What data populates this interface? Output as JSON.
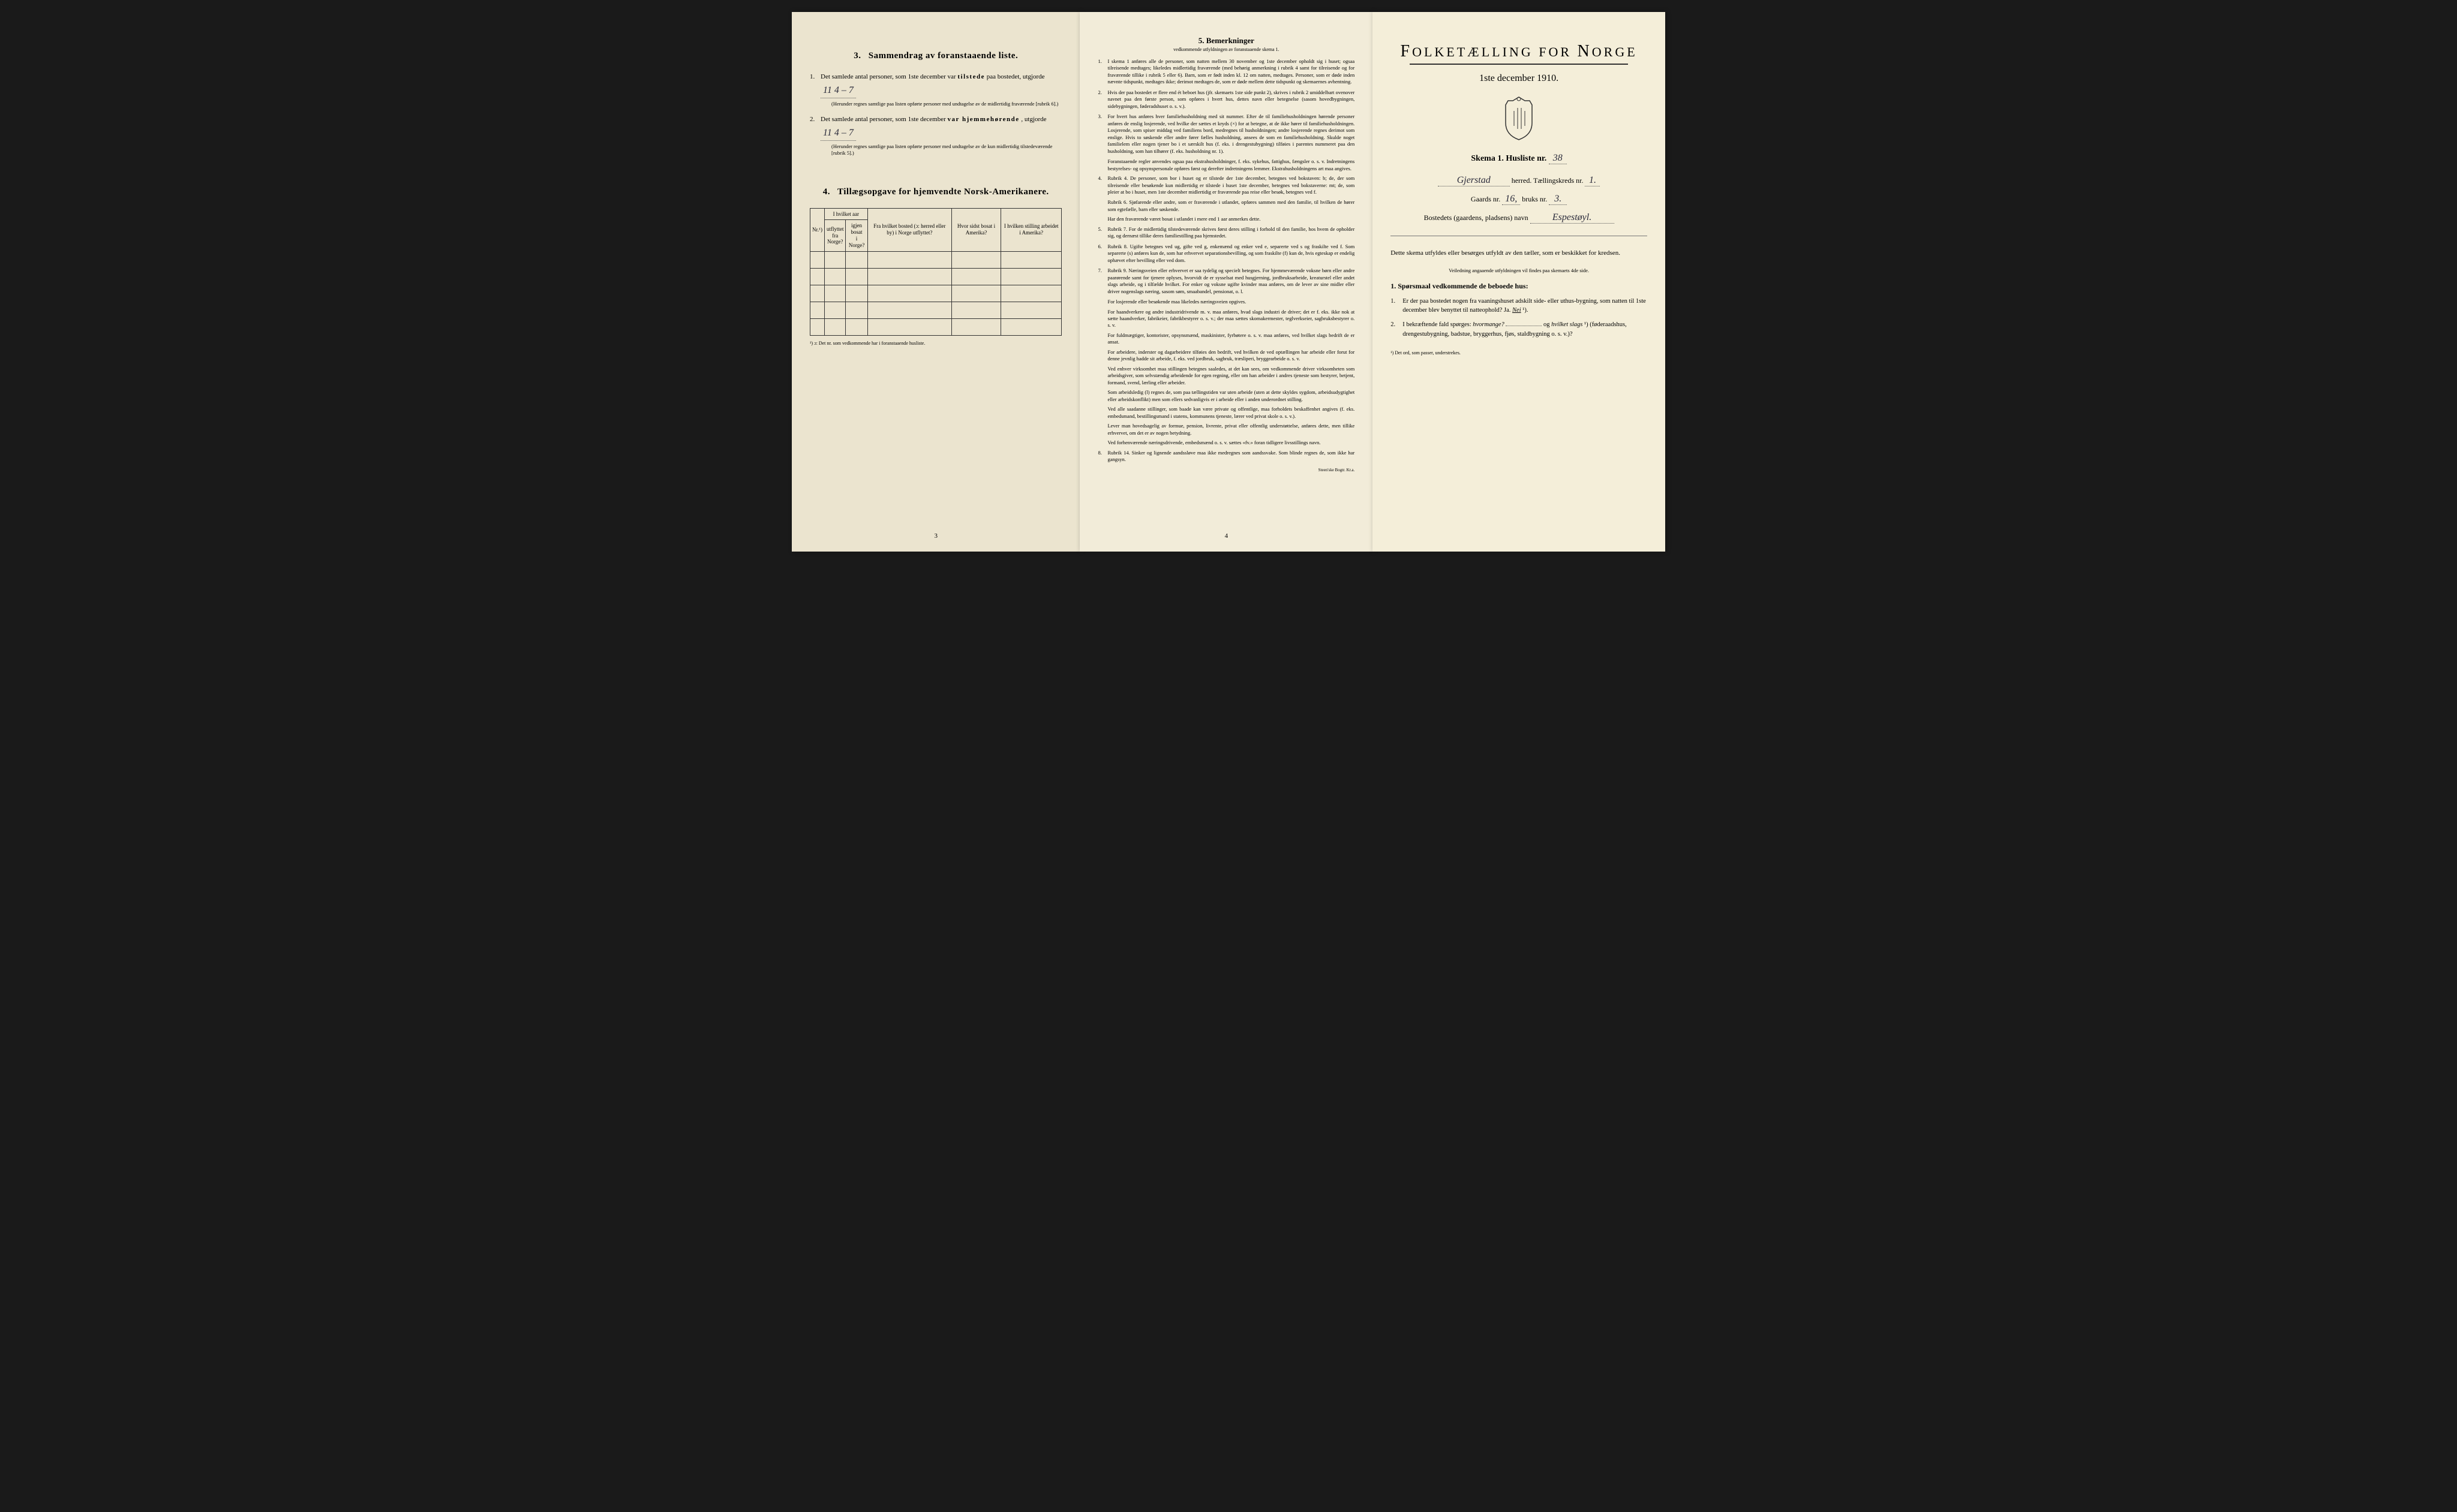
{
  "page1": {
    "section3": {
      "heading": "Sammendrag av foranstaaende liste.",
      "num": "3.",
      "item1_pre": "Det samlede antal personer, som 1ste december var ",
      "item1_bold": "tilstede",
      "item1_post": " paa bostedet, utgjorde",
      "item1_value": "11     4 – 7",
      "item1_note": "(Herunder regnes samtlige paa listen opførte personer med undtagelse av de midlertidig fraværende [rubrik 6].)",
      "item2_pre": "Det samlede antal personer, som 1ste december ",
      "item2_bold": "var hjemmehørende",
      "item2_post": ", utgjorde",
      "item2_value": "11     4 – 7",
      "item2_note": "(Herunder regnes samtlige paa listen opførte personer med undtagelse av de kun midlertidig tilstedeværende [rubrik 5].)"
    },
    "section4": {
      "heading": "Tillægsopgave for hjemvendte Norsk-Amerikanere.",
      "num": "4.",
      "cols": [
        "Nr.¹)",
        "I hvilket aar utflyttet fra Norge?",
        "igjen bosat i Norge?",
        "Fra hvilket bosted (ɔ: herred eller by) i Norge utflyttet?",
        "Hvor sidst bosat i Amerika?",
        "I hvilken stilling arbeidet i Amerika?"
      ],
      "col_group_top": "I hvilket aar",
      "row_count": 5,
      "footnote": "¹) ɔ: Det nr. som vedkommende har i foranstaaende husliste."
    },
    "page_num": "3"
  },
  "page2": {
    "heading": "5.   Bemerkninger",
    "sub": "vedkommende utfyldningen av foranstaaende skema 1.",
    "rules": [
      {
        "n": "1.",
        "t": "I skema 1 anføres alle de personer, som natten mellem 30 november og 1ste december opholdt sig i huset; ogsaa tilreisende medtages; likeledes midlertidig fraværende (med behørig anmerkning i rubrik 4 samt for tilreisende og for fraværende tillike i rubrik 5 eller 6). Barn, som er født inden kl. 12 om natten, medtages. Personer, som er døde inden nævnte tidspunkt, medtages ikke; derimot medtages de, som er døde mellem dette tidspunkt og skemaernes avhentning."
      },
      {
        "n": "2.",
        "t": "Hvis der paa bostedet er flere end ét beboet hus (jfr. skemaets 1ste side punkt 2), skrives i rubrik 2 umiddelbart ovenover navnet paa den første person, som opføres i hvert hus, dettes navn eller betegnelse (sasom hovedbygningen, sidebygningen, føderadshuset o. s. v.)."
      },
      {
        "n": "3.",
        "t": "For hvert hus anføres hver familiehusholdning med sit nummer. Efter de til familiehusholdningen hørende personer anføres de enslig losjerende, ved hvilke der sættes et kryds (×) for at betegne, at de ikke hører til familiehusholdningen. Losjerende, som spiser middag ved familiens bord, medregnes til husholdningen; andre losjerende regnes derimot som enslige. Hvis to søskende eller andre fører fælles husholdning, ansees de som en familiehusholdning. Skulde noget familielem eller nogen tjener bo i et særskilt hus (f. eks. i drengestubygning) tilføies i parentes nummeret paa den husholdning, som han tilhører (f. eks. husholdning nr. 1)."
      },
      {
        "n": "",
        "t": "Foranstaaende regler anvendes ogsaa paa ekstrahusholdninger, f. eks. sykehus, fattighus, fængsler o. s. v. Indretningens bestyrelses- og opsynspersonale opføres først og derefter indretningens lemmer. Ekstrahusholdningens art maa angives."
      },
      {
        "n": "4.",
        "t": "Rubrik 4. De personer, som bor i huset og er tilstede der 1ste december, betegnes ved bokstaven: b; de, der som tilreisende eller besøkende kun midlertidig er tilstede i huset 1ste december, betegnes ved bokstaverne: mt; de, som pleier at bo i huset, men 1ste december midlertidig er fraværende paa reise eller besøk, betegnes ved f."
      },
      {
        "n": "",
        "t": "Rubrik 6. Sjøfarende eller andre, som er fraværende i utlandet, opføres sammen med den familie, til hvilken de hører som egtefælle, barn eller søskende."
      },
      {
        "n": "",
        "t": "Har den fraværende været bosat i utlandet i mere end 1 aar anmerkes dette."
      },
      {
        "n": "5.",
        "t": "Rubrik 7. For de midlertidig tilstedeværende skrives først deres stilling i forhold til den familie, hos hvem de opholder sig, og dernæst tillike deres familiestilling paa hjemstedet."
      },
      {
        "n": "6.",
        "t": "Rubrik 8. Ugifte betegnes ved ug, gifte ved g, enkemænd og enker ved e, separerte ved s og fraskilte ved f. Som separerte (s) anføres kun de, som har erhvervet separationsbevilling, og som fraskilte (f) kun de, hvis egteskap er endelig ophævet efter bevilling eller ved dom."
      },
      {
        "n": "7.",
        "t": "Rubrik 9. Næringsveien eller erhvervet er saa tydelig og specielt betegnes. For hjemmeværende voksne børn eller andre paarørende samt for tjenere oplyses, hvorvidt de er sysselsat med husgjerning, jordbruksarbeide, kreaturstel eller andet slags arbeide, og i tilfælde hvilket. For enker og voksne ugifte kvinder maa anføres, om de lever av sine midler eller driver nogenslags næring, sasom søm, smaabandel, pensionat, o. l."
      },
      {
        "n": "",
        "t": "For losjerende eller besøkende maa likeledes næringsveien opgives."
      },
      {
        "n": "",
        "t": "For haandverkere og andre industridrivende m. v. maa anføres, hvad slags industri de driver; det er f. eks. ikke nok at sætte haandverker, fabrikeier, fabrikbestyrer o. s. v.; der maa sættes skomakermester, teglverkseier, sagbruksbestyrer o. s. v."
      },
      {
        "n": "",
        "t": "For fuldmægtiger, kontorister, opsynsmænd, maskinister, fyrbøtere o. s. v. maa anføres, ved hvilket slags bedrift de er ansat."
      },
      {
        "n": "",
        "t": "For arbeidere, inderster og dagarbeidere tilføies den bedrift, ved hvilken de ved optællingen har arbeide eller forut for denne jevnlig hadde sit arbeide, f. eks. ved jordbruk, sagbruk, træsliperi, bryggearbeide o. s. v."
      },
      {
        "n": "",
        "t": "Ved enhver virksomhet maa stillingen betegnes saaledes, at det kan sees, om vedkommende driver virksomheten som arbeidsgiver, som selvstændig arbeidende for egen regning, eller om han arbeider i andres tjeneste som bestyrer, betjent, formand, svend, lærling eller arbeider."
      },
      {
        "n": "",
        "t": "Som arbeidsledig (l) regnes de, som paa tællingstiden var uten arbeide (uten at dette skyldes sygdom, arbeidsudygtighet eller arbeidskonflikt) men som ellers sedvanligvis er i arbeide eller i anden underordnet stilling."
      },
      {
        "n": "",
        "t": "Ved alle saadanne stillinger, som baade kan være private og offentlige, maa forholdets beskaffenhet angives (f. eks. embedsmand, bestillingsmand i statens, kommunens tjeneste, lærer ved privat skole o. s. v.)."
      },
      {
        "n": "",
        "t": "Lever man hovedsagelig av formue, pension, livrente, privat eller offentlig understøttelse, anføres dette, men tillike erhvervet, om det er av nogen betydning."
      },
      {
        "n": "",
        "t": "Ved forhenværende næringsdrivende, embedsmænd o. s. v. sættes «fv.» foran tidligere livsstillings navn."
      },
      {
        "n": "8.",
        "t": "Rubrik 14. Sinker og lignende aandssløve maa ikke medregnes som aandssvake. Som blinde regnes de, som ikke har gangsyn."
      }
    ],
    "page_num": "4",
    "imprint": "Steen'ske Bogtr.  Kr.a."
  },
  "page3": {
    "title_pre": "F",
    "title_rest": "OLKETÆLLING FOR ",
    "title_pre2": "N",
    "title_rest2": "ORGE",
    "date": "1ste december 1910.",
    "skema_label": "Skema 1.   Husliste nr.",
    "husliste_nr": "38",
    "herred_value": "Gjerstad",
    "herred_label": "herred.   Tællingskreds nr.",
    "kreds_nr": "1.",
    "gaards_label": "Gaards nr.",
    "gaards_nr": "16,",
    "bruks_label": "bruks nr.",
    "bruks_nr": "3.",
    "bosted_label": "Bostedets (gaardens, pladsens) navn",
    "bosted_value": "Espestøyl.",
    "instructions": "Dette skema utfyldes eller besørges utfyldt av den tæller, som er beskikket for kredsen.",
    "inst_fine": "Veiledning angaaende utfyldningen vil findes paa skemaets 4de side.",
    "q_heading": "1. Spørsmaal vedkommende de beboede hus:",
    "q1": {
      "n": "1.",
      "text": "Er der paa bostedet nogen fra vaaningshuset adskilt side- eller uthus-bygning, som natten til 1ste december blev benyttet til natteophold?   Ja.   ",
      "answer": "Nei",
      "suffix": " ¹)."
    },
    "q2": {
      "n": "2.",
      "text_pre": "I bekræftende fald spørges: ",
      "hvor": "hvormange?",
      "og": "og ",
      "hvilket": "hvilket slags",
      "suffix": "¹)",
      "paren": "(føderaadshus, drengestubygning, badstue, bryggerhus, fjøs, staldbygning o. s. v.)?"
    },
    "footnote": "¹) Det ord, som passer, understrekes."
  },
  "colors": {
    "paper1": "#ebe4cf",
    "paper2": "#f2ecd9",
    "paper3": "#f4eed9",
    "ink": "#1a1a1a",
    "handwriting": "#2a2a3a"
  }
}
